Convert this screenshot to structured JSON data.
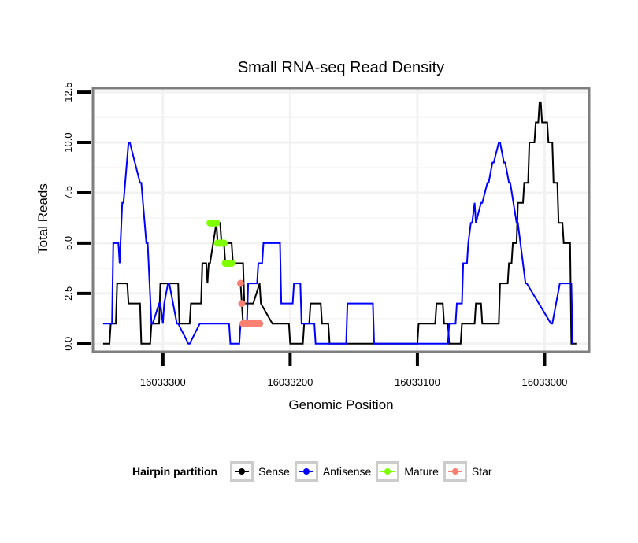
{
  "chart_data": {
    "type": "line",
    "title": "Small RNA-seq Read Density",
    "xlabel": "Genomic Position",
    "ylabel": "Total Reads",
    "x_reversed": true,
    "xlim": [
      16033355,
      16032965
    ],
    "ylim": [
      -0.4,
      12.7
    ],
    "x_ticks": [
      16033300,
      16033200,
      16033100,
      16033000
    ],
    "x_tick_labels": [
      "16033300",
      "16033200",
      "16033100",
      "16033000"
    ],
    "y_ticks": [
      0,
      2.5,
      5,
      7.5,
      10,
      12.5
    ],
    "y_tick_labels": [
      "0.0",
      "2.5",
      "5.0",
      "7.5",
      "10.0",
      "12.5"
    ],
    "grid": true,
    "legend": {
      "title": "Hairpin partition",
      "position": "bottom",
      "entries": [
        {
          "name": "Sense",
          "color": "#000000"
        },
        {
          "name": "Antisense",
          "color": "#0000ff"
        },
        {
          "name": "Mature",
          "color": "#7fff00"
        },
        {
          "name": "Star",
          "color": "#fa8072"
        }
      ]
    },
    "series": [
      {
        "name": "Sense",
        "color": "#000000",
        "x": [
          16033347,
          16033342,
          16033341,
          16033337,
          16033336,
          16033328,
          16033327,
          16033318,
          16033317,
          16033310,
          16033309,
          16033303,
          16033302,
          16033296,
          16033295,
          16033288,
          16033287,
          16033279,
          16033278,
          16033270,
          16033269,
          16033266,
          16033265,
          16033264,
          16033263,
          16033258,
          16033257,
          16033255,
          16033254,
          16033246,
          16033245,
          16033240,
          16033239,
          16033237,
          16033236,
          16033230,
          16033229,
          16033224,
          16033223,
          16033214,
          16033213,
          16033209,
          16033208,
          16033205,
          16033204,
          16033201,
          16033200,
          16033190,
          16033189,
          16033185,
          16033184,
          16033176,
          16033175,
          16033170,
          16033169,
          16033164,
          16033163,
          16033100,
          16033099,
          16033086,
          16033085,
          16033080,
          16033079,
          16033076,
          16033075,
          16033066,
          16033065,
          16033055,
          16033054,
          16033050,
          16033049,
          16033040,
          16033039,
          16033036,
          16033035,
          16033029,
          16033028,
          16033026,
          16033025,
          16033022,
          16033021,
          16033017,
          16033016,
          16033013,
          16033012,
          16033008,
          16033007,
          16033005,
          16033004,
          16033003,
          16033002,
          16032998,
          16032997,
          16032994,
          16032993,
          16032990,
          16032989,
          16032986,
          16032985,
          16032980,
          16032979,
          16032975
        ],
        "y": [
          0,
          0,
          1,
          1,
          3,
          3,
          2,
          2,
          0,
          0,
          1,
          1,
          3,
          3,
          3,
          3,
          1,
          1,
          2,
          2,
          4,
          4,
          3,
          4,
          4,
          6,
          6,
          6,
          5,
          5,
          4,
          4,
          4,
          4,
          2,
          2,
          2,
          3,
          2,
          1,
          1,
          1,
          1,
          1,
          1,
          1,
          0,
          0,
          1,
          1,
          2,
          2,
          1,
          1,
          0,
          0,
          0,
          0,
          1,
          1,
          2,
          2,
          1,
          1,
          0,
          0,
          1,
          1,
          2,
          2,
          1,
          1,
          1,
          1,
          3,
          3,
          4,
          4,
          5,
          5,
          7,
          7,
          8,
          8,
          10,
          10,
          11,
          11,
          12,
          12,
          11,
          11,
          10,
          10,
          8,
          8,
          6,
          6,
          5,
          5,
          0,
          0
        ]
      },
      {
        "name": "Antisense",
        "color": "#0000ff",
        "x": [
          16033347,
          16033340,
          16033339,
          16033335,
          16033334,
          16033332,
          16033331,
          16033327,
          16033326,
          16033318,
          16033317,
          16033313,
          16033312,
          16033309,
          16033308,
          16033303,
          16033302,
          16033300,
          16033299,
          16033296,
          16033295,
          16033289,
          16033288,
          16033280,
          16033279,
          16033271,
          16033270,
          16033248,
          16033247,
          16033240,
          16033239,
          16033234,
          16033233,
          16033226,
          16033225,
          16033222,
          16033221,
          16033215,
          16033214,
          16033208,
          16033207,
          16033198,
          16033197,
          16033192,
          16033191,
          16033181,
          16033180,
          16033156,
          16033155,
          16033135,
          16033134,
          16033101,
          16033100,
          16033076,
          16033075,
          16033070,
          16033069,
          16033065,
          16033064,
          16033061,
          16033060,
          16033058,
          16033057,
          16033055,
          16033054,
          16033050,
          16033049,
          16033045,
          16033044,
          16033041,
          16033040,
          16033036,
          16033035,
          16033032,
          16033031,
          16033028,
          16033027,
          16033022,
          16033021,
          16033015,
          16033014,
          16032995,
          16032994,
          16032988,
          16032987,
          16032979,
          16032978
        ],
        "y": [
          1,
          1,
          5,
          5,
          4,
          7,
          7,
          10,
          10,
          8,
          8,
          5,
          5,
          1,
          1,
          2,
          2,
          1,
          2,
          3,
          3,
          1,
          1,
          0,
          0,
          1,
          1,
          1,
          0,
          0,
          1,
          1,
          3,
          3,
          4,
          4,
          5,
          5,
          5,
          5,
          2,
          2,
          3,
          3,
          1,
          1,
          0,
          0,
          2,
          2,
          0,
          0,
          0,
          0,
          1,
          1,
          2,
          2,
          4,
          4,
          5,
          6,
          6,
          7,
          6,
          7,
          7,
          8,
          8,
          9,
          9,
          10,
          10,
          9,
          9,
          8,
          8,
          6,
          6,
          3,
          3,
          1,
          1,
          3,
          3,
          3,
          0
        ]
      },
      {
        "name": "Mature",
        "color": "#7fff00",
        "x": [
          16033263,
          16033262,
          16033261,
          16033260,
          16033259,
          16033258,
          16033257,
          16033256,
          16033255,
          16033254,
          16033253,
          16033252,
          16033251,
          16033250,
          16033249,
          16033248,
          16033247,
          16033246
        ],
        "y": [
          6,
          6,
          6,
          6,
          6,
          6,
          5,
          5,
          5,
          5,
          5,
          5,
          4,
          4,
          4,
          4,
          4,
          4
        ]
      },
      {
        "name": "Star",
        "color": "#fa8072",
        "x": [
          16033239,
          16033238,
          16033237,
          16033236,
          16033235,
          16033234,
          16033233,
          16033232,
          16033231,
          16033230,
          16033229,
          16033228,
          16033227,
          16033226,
          16033225,
          16033224
        ],
        "y": [
          3,
          2,
          1,
          1,
          1,
          1,
          1,
          1,
          1,
          1,
          1,
          1,
          1,
          1,
          1,
          1
        ]
      }
    ]
  }
}
